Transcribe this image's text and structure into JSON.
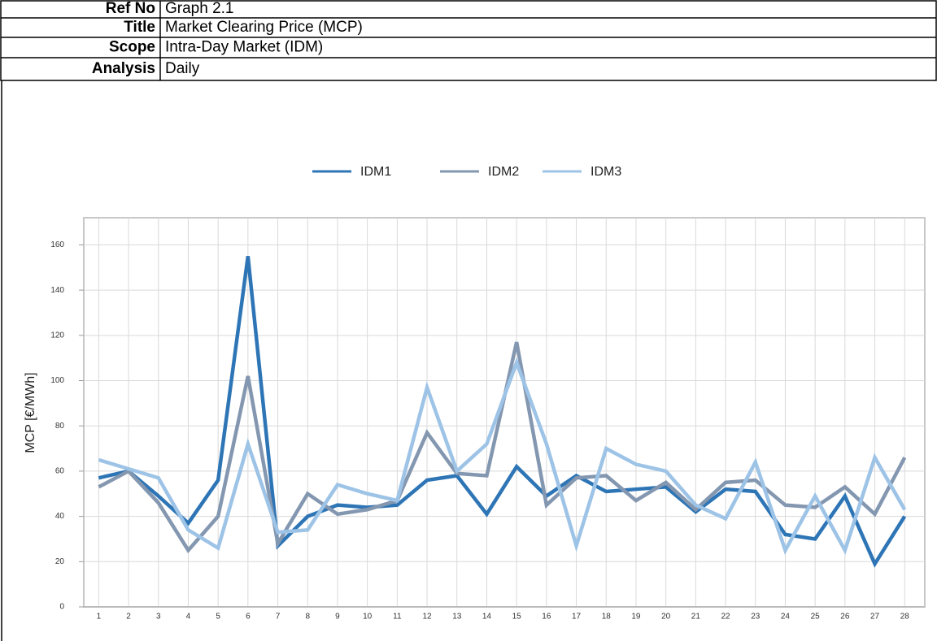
{
  "header": {
    "rows": [
      [
        "Ref No",
        "Graph 2.1"
      ],
      [
        "Title",
        "Market Clearing Price (MCP)"
      ],
      [
        "Scope",
        "Intra-Day Market (IDM)"
      ],
      [
        "Analysis",
        "Daily"
      ]
    ]
  },
  "chart_data": {
    "type": "line",
    "y_label": "MCP [€/MWh]",
    "categories": [
      "1",
      "2",
      "3",
      "4",
      "5",
      "6",
      "7",
      "8",
      "9",
      "10",
      "11",
      "12",
      "13",
      "14",
      "15",
      "16",
      "17",
      "18",
      "19",
      "20",
      "21",
      "22",
      "23",
      "24",
      "25",
      "26",
      "27",
      "28"
    ],
    "series": [
      {
        "name": "IDM1",
        "color": "#2e75b6",
        "values": [
          57,
          60,
          49,
          37,
          56,
          155,
          27,
          40,
          45,
          44,
          45,
          56,
          58,
          41,
          62,
          49,
          58,
          51,
          52,
          53,
          42,
          52,
          51,
          32,
          30,
          49,
          19,
          40
        ]
      },
      {
        "name": "IDM2",
        "color": "#8497b0",
        "values": [
          53,
          60,
          46,
          25,
          40,
          102,
          28,
          50,
          41,
          43,
          47,
          77,
          59,
          58,
          117,
          45,
          57,
          58,
          47,
          55,
          43,
          55,
          56,
          45,
          44,
          53,
          41,
          66
        ]
      },
      {
        "name": "IDM3",
        "color": "#9dc3e6",
        "values": [
          65,
          61,
          57,
          34,
          26,
          72,
          33,
          34,
          54,
          50,
          47,
          97,
          60,
          72,
          108,
          72,
          27,
          70,
          63,
          60,
          45,
          39,
          64,
          25,
          49,
          25,
          66,
          43
        ]
      }
    ],
    "ylim": [
      0,
      172
    ],
    "yticks": [
      0,
      20,
      40,
      60,
      80,
      100,
      120,
      140,
      160
    ],
    "grid": true,
    "legend": "top"
  }
}
